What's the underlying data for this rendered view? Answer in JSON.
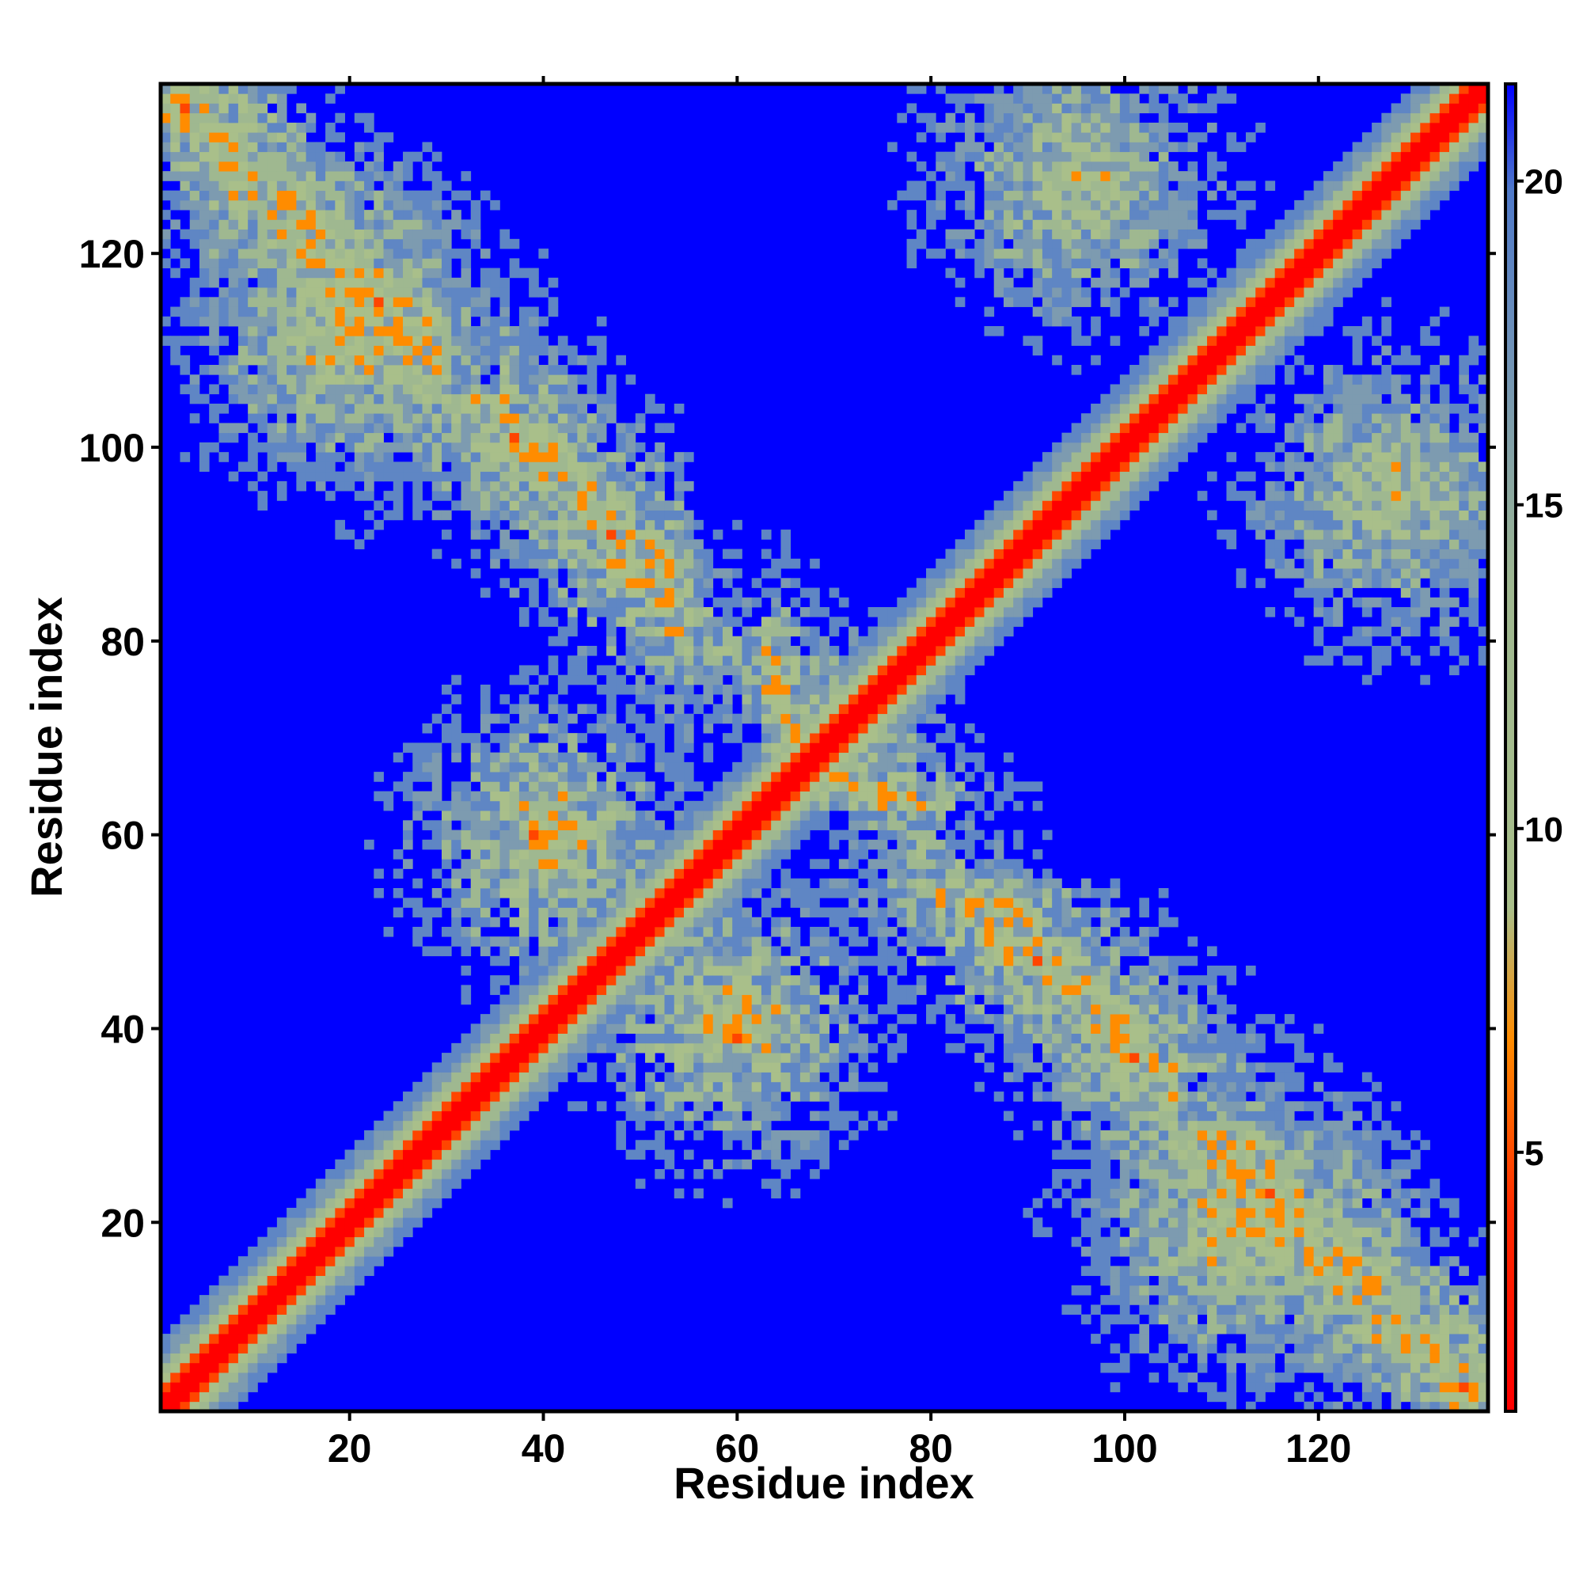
{
  "chart_data": {
    "type": "heatmap",
    "title": "",
    "xlabel": "Residue index",
    "ylabel": "Residue index",
    "n_residues": 137,
    "xlim": [
      1,
      137
    ],
    "ylim": [
      1,
      137
    ],
    "x_ticks": [
      20,
      40,
      60,
      80,
      100,
      120
    ],
    "y_ticks": [
      20,
      40,
      60,
      80,
      100,
      120
    ],
    "x_tick_labels": [
      "20",
      "40",
      "60",
      "80",
      "100",
      "120"
    ],
    "y_tick_labels": [
      "20",
      "40",
      "60",
      "80",
      "100",
      "120"
    ],
    "colorbar": {
      "range": [
        1,
        21.5
      ],
      "ticks": [
        5,
        10,
        15,
        20
      ],
      "tick_labels": [
        "5",
        "10",
        "15",
        "20"
      ],
      "position": "right",
      "colors": [
        "#ff0000",
        "#ff8c00",
        "#a9bf8a",
        "#5f86c4",
        "#0000ff"
      ]
    },
    "grid": false,
    "description_of_values": "Pairwise residue distance matrix (symmetric). Near-contact pairs (red/orange) along the diagonal and anti-diagonal bands; values beyond cutoff shown as blue."
  }
}
